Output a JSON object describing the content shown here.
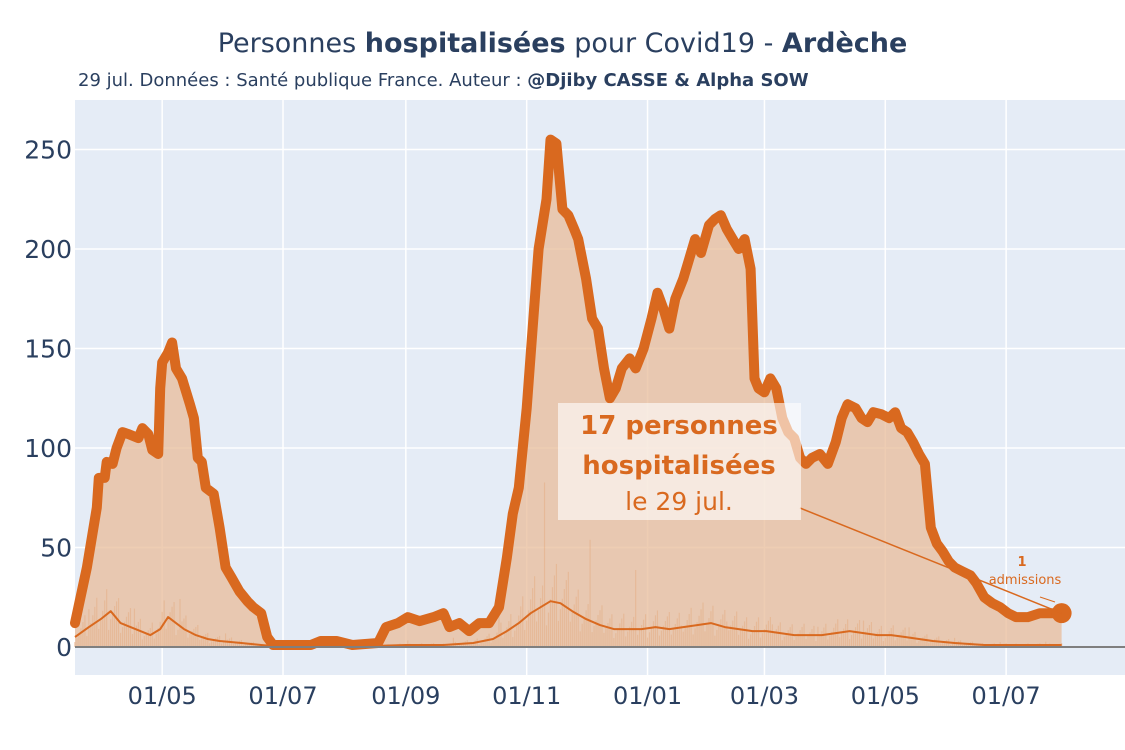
{
  "title": {
    "part1": "Personnes ",
    "bold1": "hospitalisées",
    "part2": " pour Covid19 - ",
    "bold2": "Ardèche"
  },
  "subtitle": {
    "text": "29 jul. Données : Santé publique France. Auteur : ",
    "bold": "@Djiby CASSE & Alpha SOW"
  },
  "colors": {
    "background": "#ffffff",
    "plot_bg": "#e5ecf6",
    "line": "#d9691f",
    "fill": "#e8bc9a",
    "axis_text": "#2a3f5f",
    "grid": "#ffffff",
    "zero_line": "#7f7f7f"
  },
  "annotation_main": {
    "line1": "17 personnes",
    "line2": "hospitalisées",
    "line3": "le 29 jul."
  },
  "annotation_admissions": {
    "value": "1",
    "label": "admissions"
  },
  "chart_data": {
    "type": "area",
    "title": "Personnes hospitalisées pour Covid19 - Ardèche",
    "ylim": [
      0,
      265
    ],
    "yticks": [
      0,
      50,
      100,
      150,
      200,
      250
    ],
    "xlim": [
      "2020-03-18",
      "2021-08-30"
    ],
    "xticks": [
      {
        "date": "2020-05-01",
        "label": "01/05"
      },
      {
        "date": "2020-07-01",
        "label": "01/07"
      },
      {
        "date": "2020-09-01",
        "label": "01/09"
      },
      {
        "date": "2020-11-01",
        "label": "01/11"
      },
      {
        "date": "2021-01-01",
        "label": "01/01"
      },
      {
        "date": "2021-03-01",
        "label": "01/03"
      },
      {
        "date": "2021-05-01",
        "label": "01/05"
      },
      {
        "date": "2021-07-01",
        "label": "01/07"
      }
    ],
    "grid": true,
    "series": [
      {
        "name": "hospitalisées",
        "points": [
          [
            "2020-03-18",
            12
          ],
          [
            "2020-03-24",
            40
          ],
          [
            "2020-03-29",
            70
          ],
          [
            "2020-03-30",
            85
          ],
          [
            "2020-04-02",
            85
          ],
          [
            "2020-04-03",
            93
          ],
          [
            "2020-04-06",
            92
          ],
          [
            "2020-04-08",
            100
          ],
          [
            "2020-04-11",
            108
          ],
          [
            "2020-04-14",
            107
          ],
          [
            "2020-04-19",
            105
          ],
          [
            "2020-04-21",
            110
          ],
          [
            "2020-04-24",
            107
          ],
          [
            "2020-04-26",
            99
          ],
          [
            "2020-04-29",
            97
          ],
          [
            "2020-04-30",
            130
          ],
          [
            "2020-05-01",
            143
          ],
          [
            "2020-05-04",
            148
          ],
          [
            "2020-05-06",
            153
          ],
          [
            "2020-05-08",
            140
          ],
          [
            "2020-05-11",
            135
          ],
          [
            "2020-05-15",
            122
          ],
          [
            "2020-05-17",
            115
          ],
          [
            "2020-05-19",
            95
          ],
          [
            "2020-05-21",
            93
          ],
          [
            "2020-05-23",
            80
          ],
          [
            "2020-05-27",
            77
          ],
          [
            "2020-05-30",
            60
          ],
          [
            "2020-06-02",
            40
          ],
          [
            "2020-06-05",
            35
          ],
          [
            "2020-06-09",
            28
          ],
          [
            "2020-06-13",
            23
          ],
          [
            "2020-06-16",
            20
          ],
          [
            "2020-06-20",
            17
          ],
          [
            "2020-06-23",
            5
          ],
          [
            "2020-06-26",
            1
          ],
          [
            "2020-07-05",
            1
          ],
          [
            "2020-07-15",
            1
          ],
          [
            "2020-07-20",
            3
          ],
          [
            "2020-07-28",
            3
          ],
          [
            "2020-08-05",
            1
          ],
          [
            "2020-08-18",
            2
          ],
          [
            "2020-08-22",
            10
          ],
          [
            "2020-08-28",
            12
          ],
          [
            "2020-09-02",
            15
          ],
          [
            "2020-09-08",
            13
          ],
          [
            "2020-09-15",
            15
          ],
          [
            "2020-09-20",
            17
          ],
          [
            "2020-09-23",
            10
          ],
          [
            "2020-09-28",
            12
          ],
          [
            "2020-10-03",
            8
          ],
          [
            "2020-10-08",
            12
          ],
          [
            "2020-10-13",
            12
          ],
          [
            "2020-10-18",
            20
          ],
          [
            "2020-10-22",
            45
          ],
          [
            "2020-10-25",
            67
          ],
          [
            "2020-10-28",
            80
          ],
          [
            "2020-11-01",
            120
          ],
          [
            "2020-11-04",
            160
          ],
          [
            "2020-11-07",
            200
          ],
          [
            "2020-11-11",
            225
          ],
          [
            "2020-11-13",
            255
          ],
          [
            "2020-11-16",
            253
          ],
          [
            "2020-11-19",
            220
          ],
          [
            "2020-11-22",
            217
          ],
          [
            "2020-11-25",
            210
          ],
          [
            "2020-11-27",
            205
          ],
          [
            "2020-12-01",
            185
          ],
          [
            "2020-12-04",
            165
          ],
          [
            "2020-12-07",
            160
          ],
          [
            "2020-12-10",
            140
          ],
          [
            "2020-12-13",
            125
          ],
          [
            "2020-12-16",
            130
          ],
          [
            "2020-12-19",
            140
          ],
          [
            "2020-12-23",
            145
          ],
          [
            "2020-12-26",
            140
          ],
          [
            "2020-12-30",
            150
          ],
          [
            "2021-01-03",
            165
          ],
          [
            "2021-01-06",
            178
          ],
          [
            "2021-01-09",
            170
          ],
          [
            "2021-01-12",
            160
          ],
          [
            "2021-01-15",
            175
          ],
          [
            "2021-01-19",
            185
          ],
          [
            "2021-01-22",
            195
          ],
          [
            "2021-01-25",
            205
          ],
          [
            "2021-01-28",
            198
          ],
          [
            "2021-02-01",
            212
          ],
          [
            "2021-02-04",
            215
          ],
          [
            "2021-02-07",
            217
          ],
          [
            "2021-02-10",
            210
          ],
          [
            "2021-02-13",
            205
          ],
          [
            "2021-02-16",
            200
          ],
          [
            "2021-02-19",
            205
          ],
          [
            "2021-02-22",
            190
          ],
          [
            "2021-02-24",
            135
          ],
          [
            "2021-02-26",
            130
          ],
          [
            "2021-03-01",
            128
          ],
          [
            "2021-03-04",
            135
          ],
          [
            "2021-03-07",
            130
          ],
          [
            "2021-03-10",
            115
          ],
          [
            "2021-03-13",
            108
          ],
          [
            "2021-03-16",
            105
          ],
          [
            "2021-03-19",
            95
          ],
          [
            "2021-03-22",
            92
          ],
          [
            "2021-03-25",
            95
          ],
          [
            "2021-03-29",
            97
          ],
          [
            "2021-04-02",
            92
          ],
          [
            "2021-04-06",
            103
          ],
          [
            "2021-04-09",
            115
          ],
          [
            "2021-04-12",
            122
          ],
          [
            "2021-04-16",
            120
          ],
          [
            "2021-04-19",
            115
          ],
          [
            "2021-04-22",
            113
          ],
          [
            "2021-04-25",
            118
          ],
          [
            "2021-04-29",
            117
          ],
          [
            "2021-05-03",
            115
          ],
          [
            "2021-05-06",
            118
          ],
          [
            "2021-05-09",
            110
          ],
          [
            "2021-05-12",
            108
          ],
          [
            "2021-05-15",
            103
          ],
          [
            "2021-05-18",
            97
          ],
          [
            "2021-05-21",
            92
          ],
          [
            "2021-05-24",
            60
          ],
          [
            "2021-05-27",
            52
          ],
          [
            "2021-05-30",
            48
          ],
          [
            "2021-06-02",
            43
          ],
          [
            "2021-06-05",
            40
          ],
          [
            "2021-06-09",
            38
          ],
          [
            "2021-06-13",
            36
          ],
          [
            "2021-06-16",
            32
          ],
          [
            "2021-06-20",
            25
          ],
          [
            "2021-06-24",
            22
          ],
          [
            "2021-06-28",
            20
          ],
          [
            "2021-07-02",
            17
          ],
          [
            "2021-07-06",
            15
          ],
          [
            "2021-07-12",
            15
          ],
          [
            "2021-07-18",
            17
          ],
          [
            "2021-07-24",
            17
          ],
          [
            "2021-07-29",
            17
          ]
        ]
      },
      {
        "name": "admissions",
        "points": [
          [
            "2020-03-18",
            5
          ],
          [
            "2020-03-25",
            10
          ],
          [
            "2020-03-31",
            14
          ],
          [
            "2020-04-05",
            18
          ],
          [
            "2020-04-10",
            12
          ],
          [
            "2020-04-15",
            10
          ],
          [
            "2020-04-20",
            8
          ],
          [
            "2020-04-25",
            6
          ],
          [
            "2020-04-30",
            9
          ],
          [
            "2020-05-04",
            15
          ],
          [
            "2020-05-08",
            12
          ],
          [
            "2020-05-12",
            9
          ],
          [
            "2020-05-18",
            6
          ],
          [
            "2020-05-24",
            4
          ],
          [
            "2020-05-30",
            3
          ],
          [
            "2020-06-10",
            2
          ],
          [
            "2020-06-20",
            1
          ],
          [
            "2020-07-01",
            0
          ],
          [
            "2020-08-01",
            0
          ],
          [
            "2020-09-01",
            1
          ],
          [
            "2020-09-20",
            1
          ],
          [
            "2020-10-05",
            2
          ],
          [
            "2020-10-15",
            4
          ],
          [
            "2020-10-22",
            8
          ],
          [
            "2020-10-28",
            12
          ],
          [
            "2020-11-03",
            17
          ],
          [
            "2020-11-08",
            20
          ],
          [
            "2020-11-13",
            23
          ],
          [
            "2020-11-18",
            22
          ],
          [
            "2020-11-24",
            18
          ],
          [
            "2020-12-01",
            14
          ],
          [
            "2020-12-08",
            11
          ],
          [
            "2020-12-15",
            9
          ],
          [
            "2020-12-22",
            9
          ],
          [
            "2020-12-29",
            9
          ],
          [
            "2021-01-05",
            10
          ],
          [
            "2021-01-12",
            9
          ],
          [
            "2021-01-19",
            10
          ],
          [
            "2021-01-26",
            11
          ],
          [
            "2021-02-02",
            12
          ],
          [
            "2021-02-09",
            10
          ],
          [
            "2021-02-16",
            9
          ],
          [
            "2021-02-23",
            8
          ],
          [
            "2021-03-02",
            8
          ],
          [
            "2021-03-09",
            7
          ],
          [
            "2021-03-16",
            6
          ],
          [
            "2021-03-23",
            6
          ],
          [
            "2021-03-30",
            6
          ],
          [
            "2021-04-06",
            7
          ],
          [
            "2021-04-13",
            8
          ],
          [
            "2021-04-20",
            7
          ],
          [
            "2021-04-27",
            6
          ],
          [
            "2021-05-04",
            6
          ],
          [
            "2021-05-11",
            5
          ],
          [
            "2021-05-18",
            4
          ],
          [
            "2021-05-25",
            3
          ],
          [
            "2021-06-05",
            2
          ],
          [
            "2021-06-20",
            1
          ],
          [
            "2021-07-10",
            1
          ],
          [
            "2021-07-29",
            1
          ]
        ]
      }
    ]
  }
}
